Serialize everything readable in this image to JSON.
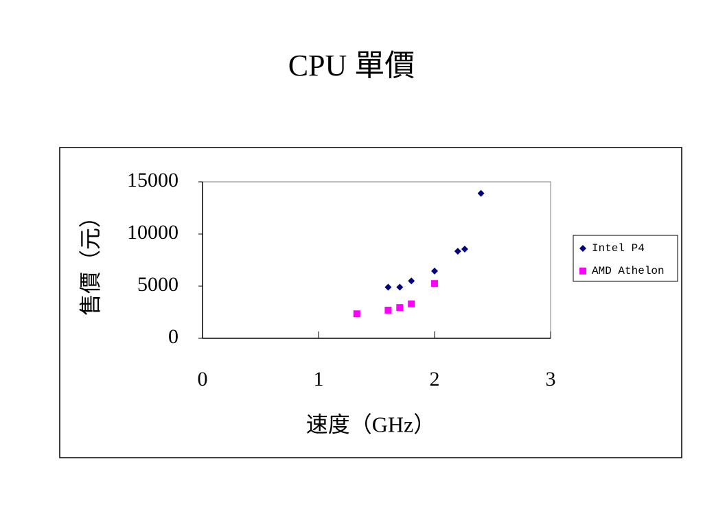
{
  "chart_data": {
    "type": "scatter",
    "title": "CPU 單價",
    "x_label": "速度（GHz）",
    "y_label": "售價（元）",
    "xlim": [
      0,
      3
    ],
    "xticks": [
      0,
      1,
      2,
      3
    ],
    "ylim": [
      0,
      15000
    ],
    "yticks": [
      0,
      5000,
      10000,
      15000
    ],
    "series": [
      {
        "name": "Intel P4",
        "color": "#000080",
        "marker": "diamond",
        "x": [
          1.6,
          1.7,
          1.8,
          2.0,
          2.2,
          2.26,
          2.4
        ],
        "values": [
          4900,
          4900,
          5500,
          6450,
          8350,
          8550,
          13900
        ]
      },
      {
        "name": "AMD Athelon",
        "color": "#ff00ff",
        "marker": "square",
        "x": [
          1.33,
          1.6,
          1.7,
          1.8,
          2.0
        ],
        "values": [
          2350,
          2700,
          2950,
          3300,
          5250
        ]
      }
    ]
  }
}
